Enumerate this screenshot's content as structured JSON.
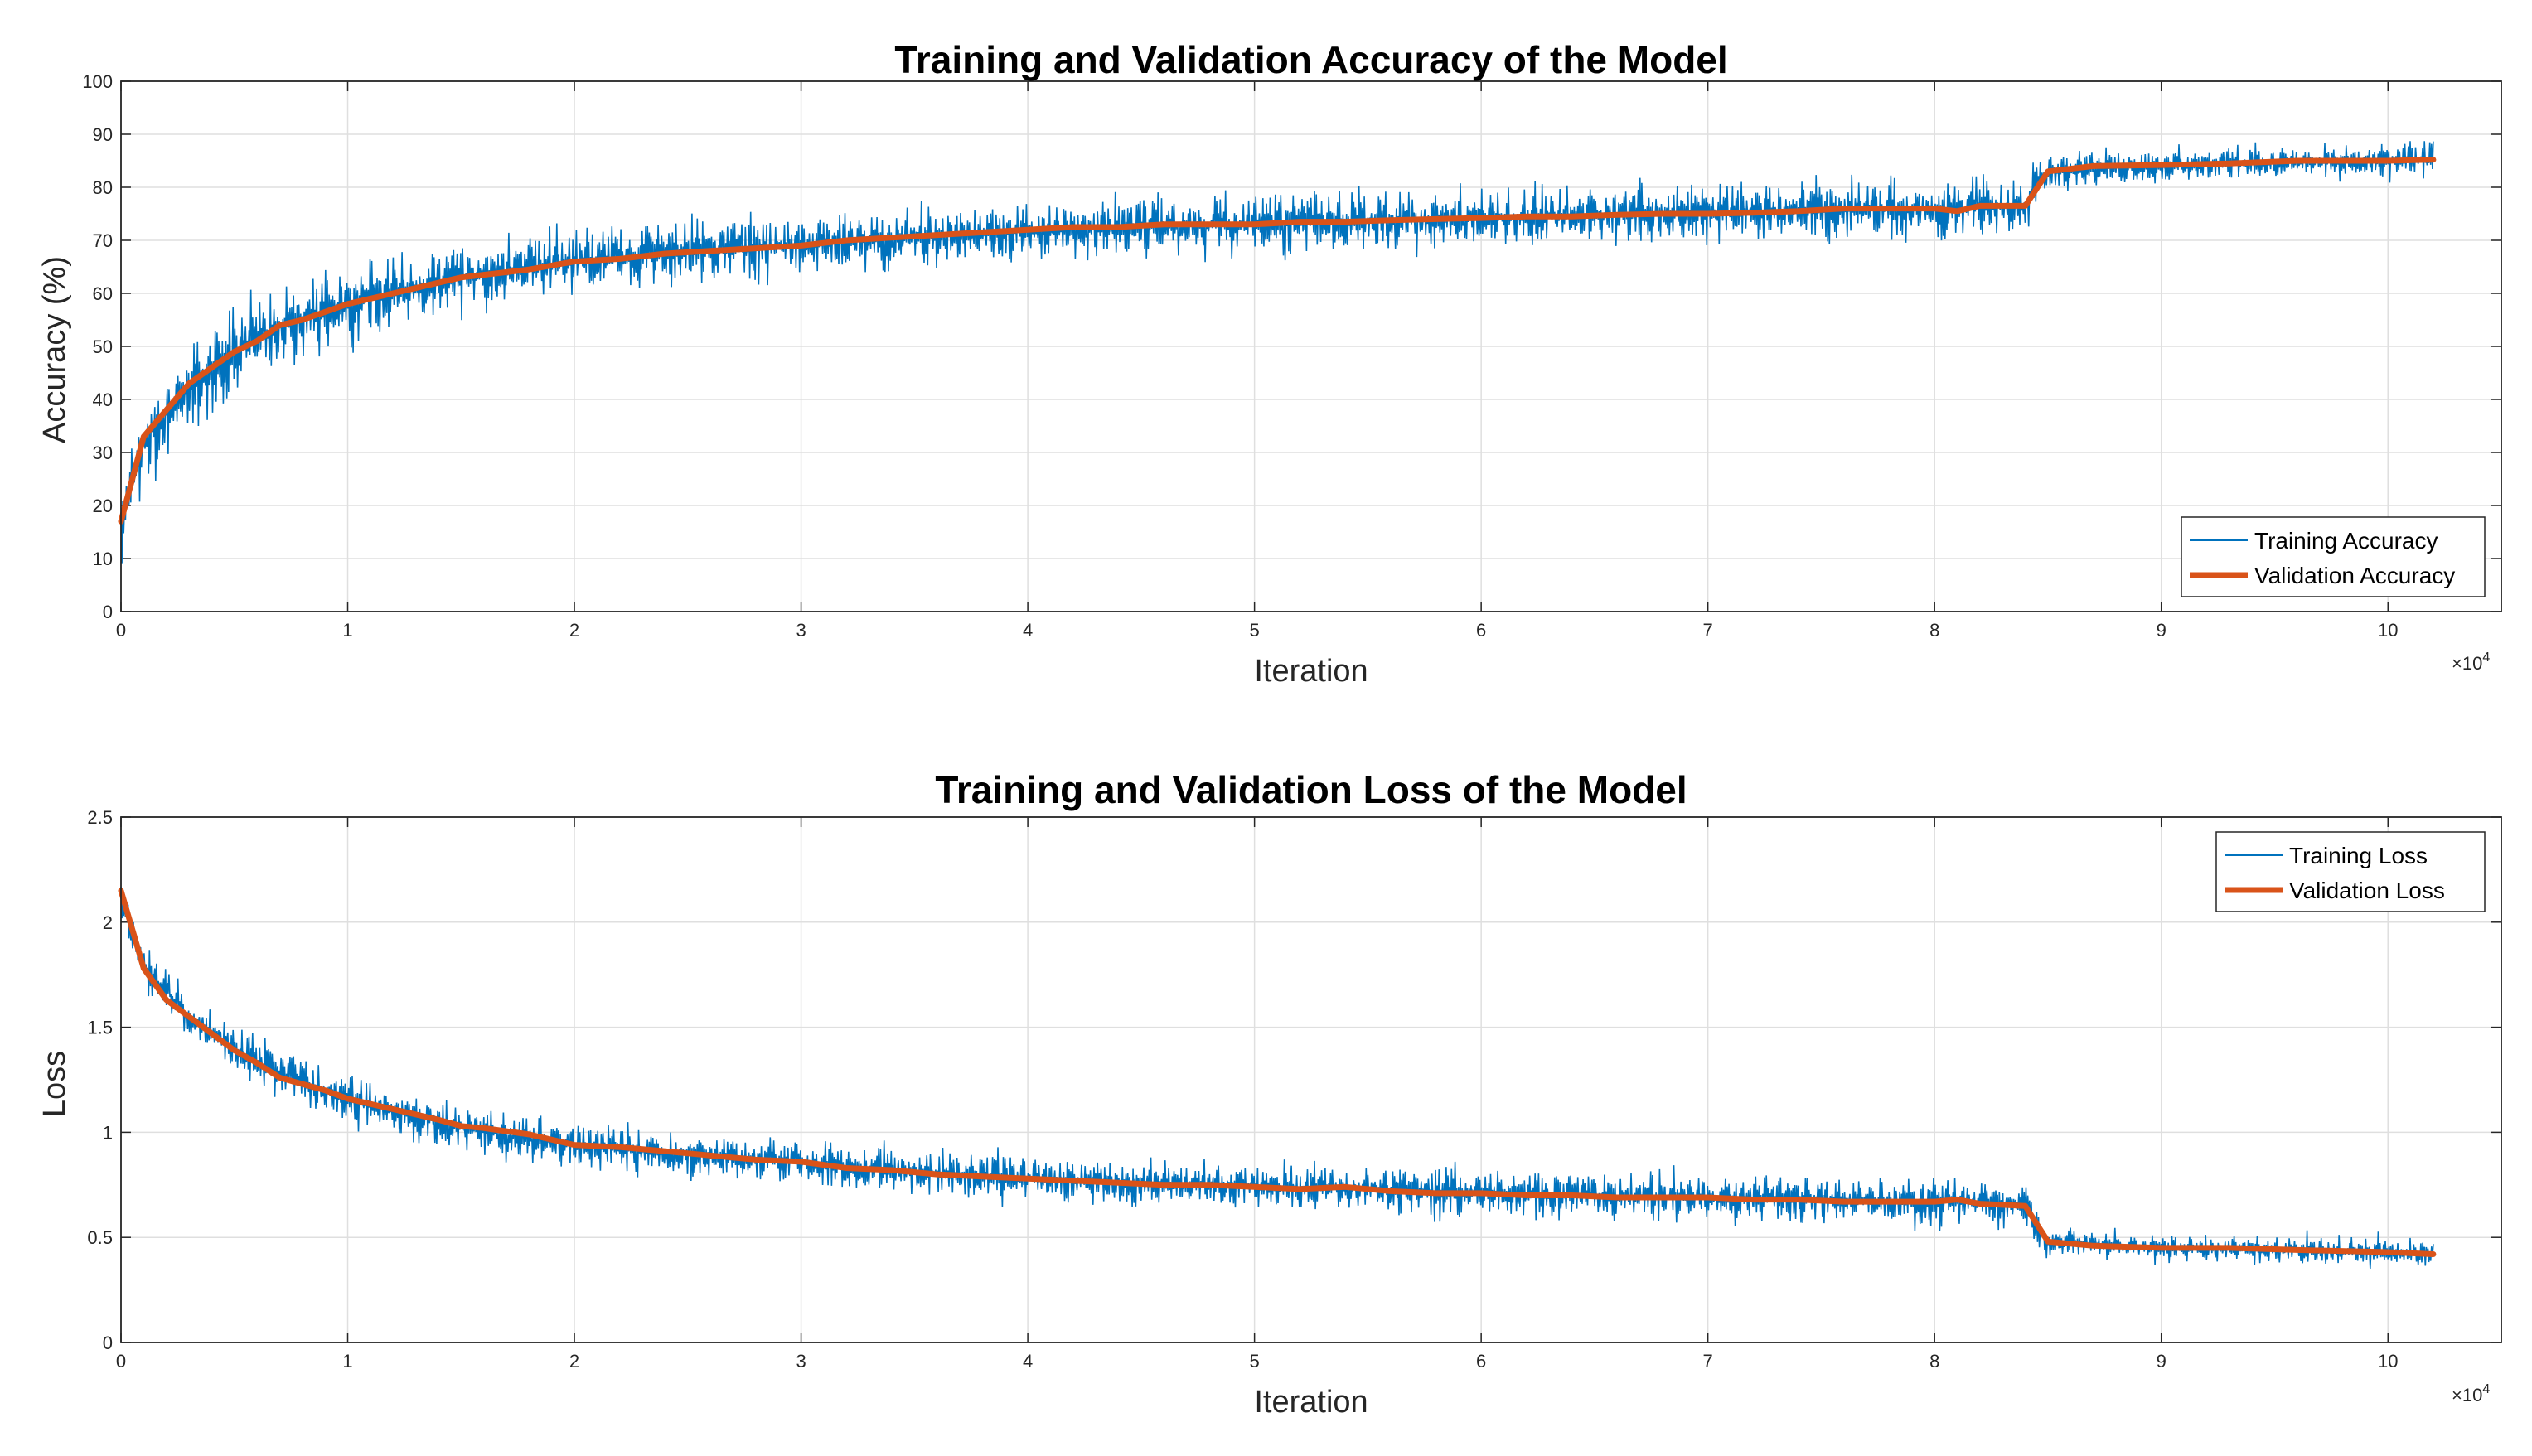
{
  "chart_data": [
    {
      "type": "line",
      "title": "Training and Validation Accuracy of the Model",
      "xlabel": "Iteration",
      "ylabel": "Accuracy (%)",
      "x_multiplier": "×10^4",
      "x_exponent_base": "×10",
      "x_exponent_power": "4",
      "xlim": [
        0,
        10.5
      ],
      "ylim": [
        0,
        100
      ],
      "xticks": [
        0,
        1,
        2,
        3,
        4,
        5,
        6,
        7,
        8,
        9,
        10
      ],
      "yticks": [
        0,
        10,
        20,
        30,
        40,
        50,
        60,
        70,
        80,
        90,
        100
      ],
      "grid": true,
      "legend_position": "bottom-right",
      "series": [
        {
          "name": "Training Accuracy",
          "color": "#0072BD",
          "style": "noisy-band",
          "x": [
            0,
            0.1,
            0.3,
            0.5,
            0.7,
            1.0,
            1.5,
            2.0,
            2.5,
            3.0,
            3.5,
            4.0,
            4.5,
            5.0,
            5.5,
            6.0,
            6.5,
            7.0,
            7.5,
            8.0,
            8.4,
            8.45,
            8.5,
            9.0,
            9.5,
            10.0,
            10.2
          ],
          "center": [
            17,
            32,
            42,
            49,
            54,
            58,
            63,
            66,
            68,
            69,
            70.5,
            71.5,
            72.5,
            73,
            73.5,
            74,
            74.8,
            75.2,
            75.8,
            76,
            76.5,
            81,
            83,
            84,
            84.7,
            85,
            85.2
          ],
          "spread": [
            12,
            11,
            10,
            9,
            8.5,
            8,
            7.5,
            7,
            7,
            6.5,
            6.5,
            6.5,
            6.5,
            6.5,
            6.5,
            6.5,
            6.5,
            6.5,
            6.5,
            6.5,
            6.5,
            4.5,
            3.8,
            3.8,
            3.8,
            3.8,
            3.8
          ]
        },
        {
          "name": "Validation Accuracy",
          "color": "#D95319",
          "style": "thick-line",
          "x": [
            0,
            0.1,
            0.2,
            0.3,
            0.4,
            0.5,
            0.6,
            0.7,
            0.8,
            0.9,
            1.0,
            1.2,
            1.4,
            1.5,
            1.6,
            1.8,
            2.0,
            2.2,
            2.4,
            2.6,
            2.8,
            3.0,
            3.2,
            3.4,
            3.6,
            3.8,
            4.0,
            4.2,
            4.4,
            4.6,
            4.8,
            5.0,
            5.2,
            5.4,
            5.6,
            5.8,
            6.0,
            6.2,
            6.4,
            6.6,
            6.8,
            7.0,
            7.2,
            7.4,
            7.6,
            7.8,
            8.0,
            8.1,
            8.2,
            8.4,
            8.5,
            8.7,
            9.0,
            9.3,
            9.6,
            10.0,
            10.2
          ],
          "y": [
            17,
            33,
            38,
            43,
            46,
            49,
            51,
            54,
            55,
            56.5,
            58,
            60,
            62,
            63,
            63.5,
            64.5,
            66,
            66.5,
            67.5,
            68,
            68.5,
            69,
            70,
            70.5,
            71,
            71.5,
            72,
            72.5,
            72.5,
            73,
            73,
            73,
            73.5,
            73.5,
            73.8,
            74,
            74.2,
            74.5,
            74.5,
            74.8,
            75,
            75,
            75.2,
            75.5,
            76,
            76,
            76,
            75.5,
            76.5,
            76.5,
            83,
            84,
            84.2,
            84.5,
            85,
            85,
            85.2
          ]
        }
      ]
    },
    {
      "type": "line",
      "title": "Training and Validation Loss of the Model",
      "xlabel": "Iteration",
      "ylabel": "Loss",
      "x_multiplier": "×10^4",
      "x_exponent_base": "×10",
      "x_exponent_power": "4",
      "xlim": [
        0,
        10.5
      ],
      "ylim": [
        0,
        2.5
      ],
      "xticks": [
        0,
        1,
        2,
        3,
        4,
        5,
        6,
        7,
        8,
        9,
        10
      ],
      "yticks": [
        0,
        0.5,
        1,
        1.5,
        2,
        2.5
      ],
      "ytick_labels": [
        "0",
        "0.5",
        "1",
        "1.5",
        "2",
        "2.5"
      ],
      "grid": true,
      "legend_position": "top-right",
      "series": [
        {
          "name": "Training Loss",
          "color": "#0072BD",
          "style": "noisy-band",
          "x": [
            0,
            0.1,
            0.3,
            0.5,
            0.7,
            1.0,
            1.5,
            2.0,
            2.5,
            3.0,
            3.5,
            4.0,
            4.5,
            5.0,
            5.5,
            6.0,
            6.5,
            7.0,
            7.5,
            8.0,
            8.4,
            8.45,
            8.5,
            9.0,
            9.5,
            10.0,
            10.2
          ],
          "center": [
            2.1,
            1.8,
            1.55,
            1.4,
            1.28,
            1.15,
            1.02,
            0.94,
            0.89,
            0.86,
            0.81,
            0.78,
            0.76,
            0.75,
            0.73,
            0.71,
            0.7,
            0.69,
            0.68,
            0.67,
            0.66,
            0.55,
            0.48,
            0.45,
            0.44,
            0.43,
            0.42
          ],
          "spread": [
            0.1,
            0.12,
            0.13,
            0.13,
            0.13,
            0.13,
            0.13,
            0.13,
            0.13,
            0.13,
            0.13,
            0.13,
            0.13,
            0.13,
            0.13,
            0.13,
            0.13,
            0.13,
            0.13,
            0.13,
            0.13,
            0.1,
            0.08,
            0.08,
            0.08,
            0.08,
            0.08
          ]
        },
        {
          "name": "Validation Loss",
          "color": "#D95319",
          "style": "thick-line",
          "x": [
            0,
            0.1,
            0.2,
            0.3,
            0.4,
            0.5,
            0.6,
            0.7,
            0.8,
            0.9,
            1.0,
            1.2,
            1.4,
            1.5,
            1.6,
            1.8,
            2.0,
            2.2,
            2.4,
            2.6,
            2.8,
            3.0,
            3.2,
            3.4,
            3.6,
            3.8,
            4.0,
            4.2,
            4.4,
            4.6,
            4.8,
            5.0,
            5.2,
            5.4,
            5.6,
            5.8,
            6.0,
            6.2,
            6.4,
            6.6,
            6.8,
            7.0,
            7.2,
            7.4,
            7.6,
            7.8,
            8.0,
            8.1,
            8.2,
            8.4,
            8.5,
            8.7,
            9.0,
            9.3,
            9.6,
            10.0,
            10.2
          ],
          "y": [
            2.15,
            1.78,
            1.63,
            1.55,
            1.47,
            1.39,
            1.33,
            1.26,
            1.23,
            1.2,
            1.16,
            1.11,
            1.06,
            1.03,
            1.02,
            0.99,
            0.94,
            0.93,
            0.91,
            0.89,
            0.87,
            0.86,
            0.83,
            0.82,
            0.8,
            0.79,
            0.78,
            0.77,
            0.76,
            0.75,
            0.75,
            0.74,
            0.73,
            0.74,
            0.72,
            0.71,
            0.71,
            0.7,
            0.7,
            0.69,
            0.69,
            0.69,
            0.68,
            0.68,
            0.67,
            0.67,
            0.67,
            0.68,
            0.66,
            0.65,
            0.48,
            0.46,
            0.45,
            0.45,
            0.44,
            0.43,
            0.42
          ]
        }
      ]
    }
  ]
}
